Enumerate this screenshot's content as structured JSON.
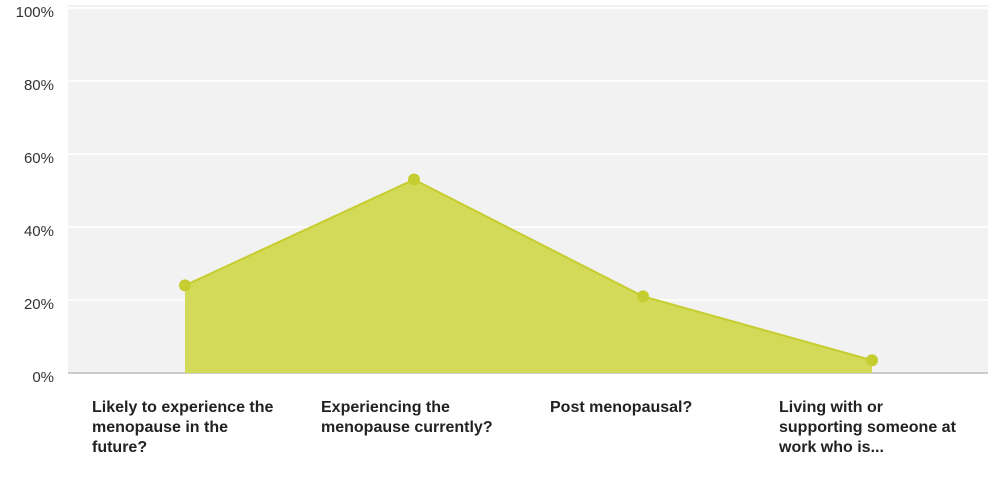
{
  "chart_data": {
    "type": "area",
    "categories": [
      "Likely to experience the menopause in the future?",
      "Experiencing the menopause currently?",
      "Post menopausal?",
      "Living with or supporting someone at work who is..."
    ],
    "series": [
      {
        "color": "#d3da58",
        "values": [
          24,
          53,
          21,
          3.5
        ]
      }
    ],
    "ylim": [
      0,
      100
    ],
    "yticks": [
      {
        "value": 0,
        "label": "0%"
      },
      {
        "value": 20,
        "label": "20%"
      },
      {
        "value": 40,
        "label": "40%"
      },
      {
        "value": 60,
        "label": "60%"
      },
      {
        "value": 80,
        "label": "80%"
      },
      {
        "value": 100,
        "label": "100%"
      }
    ],
    "grid": true
  }
}
